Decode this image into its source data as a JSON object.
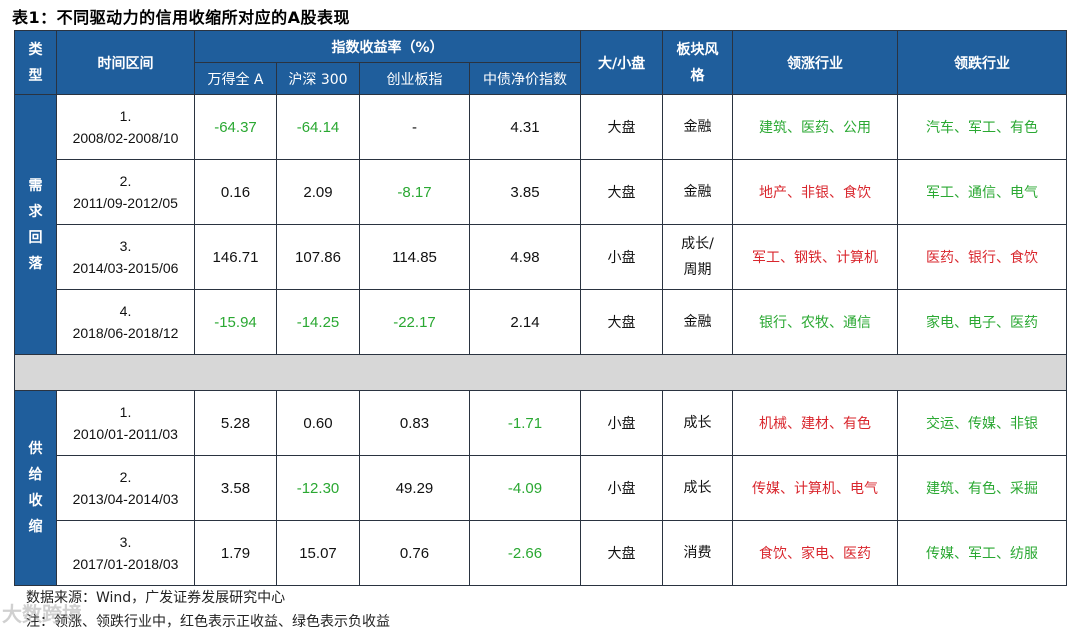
{
  "title": "表1：不同驱动力的信用收缩所对应的A股表现",
  "header": {
    "type": "类型",
    "type_chars": [
      "类",
      "型"
    ],
    "period": "时间区间",
    "returns_group": "指数收益率（%）",
    "idx1": "万得全 A",
    "idx2": "沪深 300",
    "idx3": "创业板指",
    "idx4": "中债净价指数",
    "size": "大/小盘",
    "style": "板块风格",
    "style_lines": [
      "板块风",
      "格"
    ],
    "lead": "领涨行业",
    "lag": "领跌行业"
  },
  "colors": {
    "header_bg": "#1f5e9c",
    "positive": "#d9272e",
    "negative": "#2aa832",
    "separator": "#d7d7d7"
  },
  "groups": [
    {
      "label": "需求回落",
      "label_chars": [
        "需",
        "求",
        "回",
        "落"
      ],
      "rows": [
        {
          "no": "1.",
          "range": "2008/02-2008/10",
          "r1": "-64.37",
          "r2": "-64.14",
          "r3": "-",
          "r4": "4.31",
          "size": "大盘",
          "style": [
            "金融"
          ],
          "lead": "建筑、医药、公用",
          "lead_color": "negative",
          "lag": "汽车、军工、有色",
          "lag_color": "negative"
        },
        {
          "no": "2.",
          "range": "2011/09-2012/05",
          "r1": "0.16",
          "r2": "2.09",
          "r3": "-8.17",
          "r4": "3.85",
          "size": "大盘",
          "style": [
            "金融"
          ],
          "lead": "地产、非银、食饮",
          "lead_color": "positive",
          "lag": "军工、通信、电气",
          "lag_color": "negative"
        },
        {
          "no": "3.",
          "range": "2014/03-2015/06",
          "r1": "146.71",
          "r2": "107.86",
          "r3": "114.85",
          "r4": "4.98",
          "size": "小盘",
          "style": [
            "成长/",
            "周期"
          ],
          "lead": "军工、钢铁、计算机",
          "lead_color": "positive",
          "lag": "医药、银行、食饮",
          "lag_color": "positive"
        },
        {
          "no": "4.",
          "range": "2018/06-2018/12",
          "r1": "-15.94",
          "r2": "-14.25",
          "r3": "-22.17",
          "r4": "2.14",
          "size": "大盘",
          "style": [
            "金融"
          ],
          "lead": "银行、农牧、通信",
          "lead_color": "negative",
          "lag": "家电、电子、医药",
          "lag_color": "negative"
        }
      ]
    },
    {
      "label": "供给收缩",
      "label_chars": [
        "供",
        "给",
        "收",
        "缩"
      ],
      "rows": [
        {
          "no": "1.",
          "range": "2010/01-2011/03",
          "r1": "5.28",
          "r2": "0.60",
          "r3": "0.83",
          "r4": "-1.71",
          "size": "小盘",
          "style": [
            "成长"
          ],
          "lead": "机械、建材、有色",
          "lead_color": "positive",
          "lag": "交运、传媒、非银",
          "lag_color": "negative"
        },
        {
          "no": "2.",
          "range": "2013/04-2014/03",
          "r1": "3.58",
          "r2": "-12.30",
          "r3": "49.29",
          "r4": "-4.09",
          "size": "小盘",
          "style": [
            "成长"
          ],
          "lead": "传媒、计算机、电气",
          "lead_color": "positive",
          "lag": "建筑、有色、采掘",
          "lag_color": "negative"
        },
        {
          "no": "3.",
          "range": "2017/01-2018/03",
          "r1": "1.79",
          "r2": "15.07",
          "r3": "0.76",
          "r4": "-2.66",
          "size": "大盘",
          "style": [
            "消费"
          ],
          "lead": "食饮、家电、医药",
          "lead_color": "positive",
          "lag": "传媒、军工、纺服",
          "lag_color": "negative"
        }
      ]
    }
  ],
  "notes": {
    "source": "数据来源：Wind，广发证券发展研究中心",
    "note": "注：领涨、领跌行业中，红色表示正收益、绿色表示负收益"
  },
  "watermark": "大数跨境"
}
